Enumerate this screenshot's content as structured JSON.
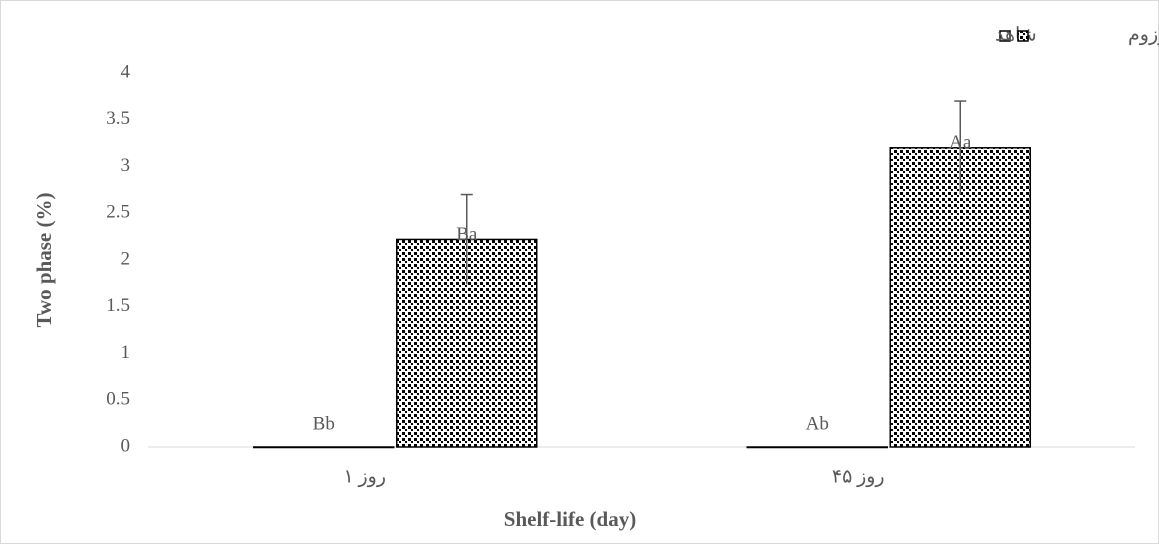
{
  "chart_data": {
    "type": "bar",
    "xlabel": "Shelf-life (day)",
    "ylabel": "Two phase (%)",
    "categories": [
      "روز ۱",
      "روز ۴۵"
    ],
    "series": [
      {
        "name": "شاهد",
        "color": "#ffffff",
        "pattern": "none",
        "values": [
          0,
          0
        ],
        "labels": [
          "Bb",
          "Ab"
        ]
      },
      {
        "name": "حاوی کیتوزوم",
        "color": "#000000",
        "pattern": "dots",
        "values": [
          2.22,
          3.2
        ],
        "errors": [
          0.48,
          0.5
        ],
        "labels": [
          "Ba",
          "Aa"
        ]
      }
    ],
    "ylim": [
      0,
      4
    ],
    "yticks": [
      0,
      0.5,
      1,
      1.5,
      2,
      2.5,
      3,
      3.5,
      4
    ],
    "grid": false,
    "legend": "top-right"
  }
}
